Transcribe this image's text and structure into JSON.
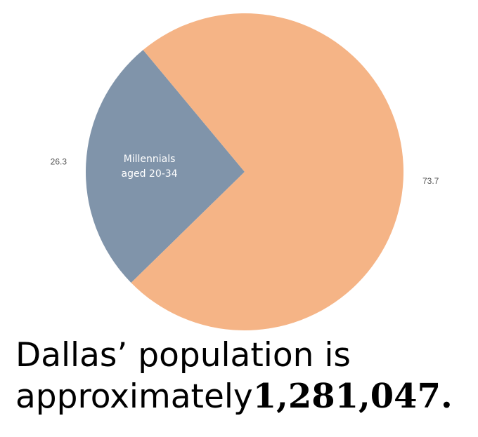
{
  "chart_data": {
    "type": "pie",
    "categories": [
      "Millennials aged 20-34",
      null
    ],
    "values": [
      26.3,
      73.7
    ],
    "colors": [
      "#8094aa",
      "#f5b486"
    ]
  },
  "caption": {
    "lines": [
      "Dallas’ population is",
      "approximately"
    ],
    "emphasis": "1,281,047."
  }
}
